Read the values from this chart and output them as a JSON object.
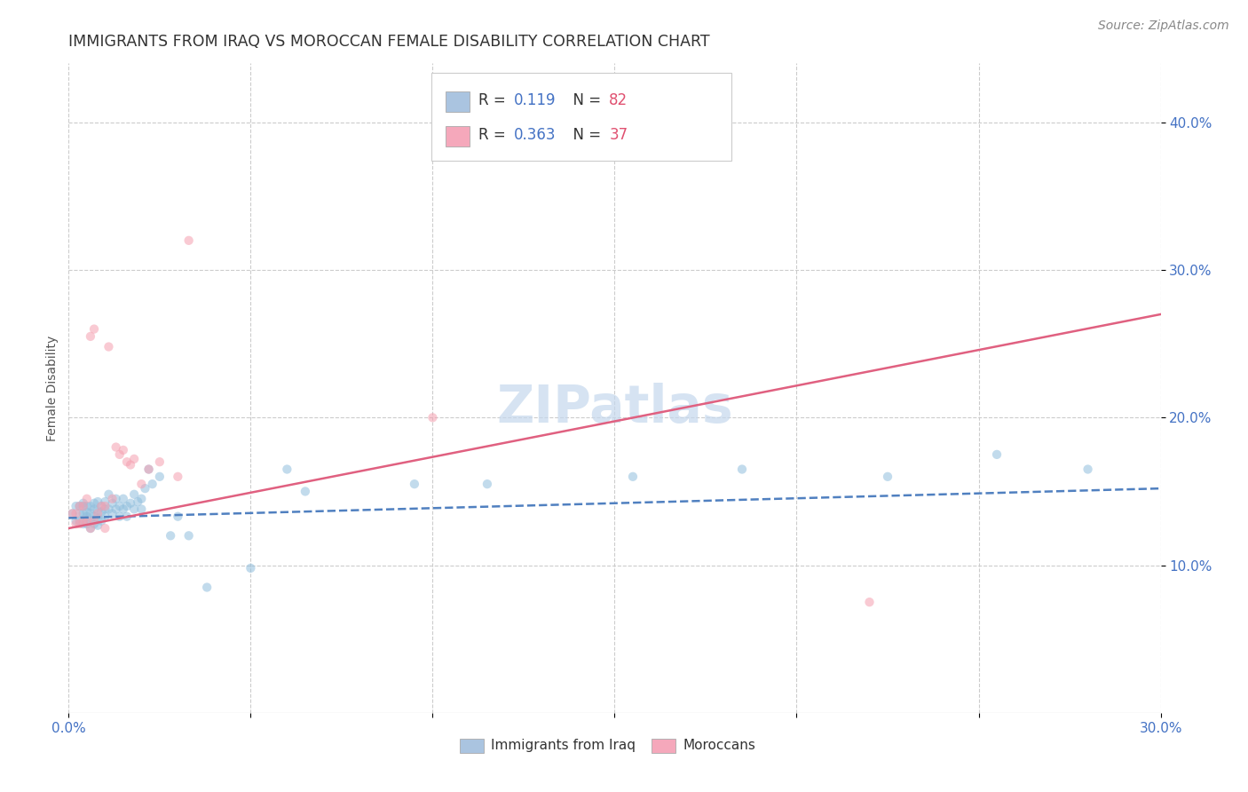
{
  "title": "IMMIGRANTS FROM IRAQ VS MOROCCAN FEMALE DISABILITY CORRELATION CHART",
  "source": "Source: ZipAtlas.com",
  "ylabel": "Female Disability",
  "xlim": [
    0.0,
    0.3
  ],
  "ylim": [
    0.0,
    0.44
  ],
  "xtick_values": [
    0.0,
    0.3
  ],
  "xtick_labels": [
    "0.0%",
    "30.0%"
  ],
  "ytick_values": [
    0.1,
    0.2,
    0.3,
    0.4
  ],
  "ytick_labels": [
    "10.0%",
    "20.0%",
    "30.0%",
    "40.0%"
  ],
  "watermark": "ZIPatlas",
  "legend_color1": "#aac4e0",
  "legend_color2": "#f5a8bb",
  "color_iraq": "#90bedd",
  "color_moroccan": "#f5a0b0",
  "line_color_iraq": "#5080c0",
  "line_color_moroccan": "#e06080",
  "iraq_scatter_x": [
    0.001,
    0.002,
    0.002,
    0.003,
    0.003,
    0.003,
    0.004,
    0.004,
    0.004,
    0.004,
    0.005,
    0.005,
    0.005,
    0.005,
    0.006,
    0.006,
    0.006,
    0.006,
    0.007,
    0.007,
    0.007,
    0.007,
    0.008,
    0.008,
    0.008,
    0.008,
    0.009,
    0.009,
    0.009,
    0.01,
    0.01,
    0.01,
    0.011,
    0.011,
    0.012,
    0.012,
    0.013,
    0.013,
    0.014,
    0.014,
    0.015,
    0.015,
    0.016,
    0.016,
    0.017,
    0.018,
    0.018,
    0.019,
    0.02,
    0.02,
    0.021,
    0.022,
    0.023,
    0.025,
    0.028,
    0.03,
    0.033,
    0.038,
    0.05,
    0.06,
    0.065,
    0.095,
    0.115,
    0.155,
    0.185,
    0.225,
    0.255,
    0.28
  ],
  "iraq_scatter_y": [
    0.135,
    0.14,
    0.13,
    0.14,
    0.135,
    0.13,
    0.14,
    0.135,
    0.128,
    0.142,
    0.14,
    0.133,
    0.136,
    0.128,
    0.14,
    0.135,
    0.13,
    0.125,
    0.142,
    0.138,
    0.133,
    0.128,
    0.143,
    0.137,
    0.132,
    0.127,
    0.14,
    0.136,
    0.13,
    0.143,
    0.138,
    0.133,
    0.148,
    0.138,
    0.142,
    0.135,
    0.145,
    0.138,
    0.14,
    0.133,
    0.145,
    0.138,
    0.14,
    0.133,
    0.142,
    0.148,
    0.138,
    0.143,
    0.145,
    0.138,
    0.152,
    0.165,
    0.155,
    0.16,
    0.12,
    0.133,
    0.12,
    0.085,
    0.098,
    0.165,
    0.15,
    0.155,
    0.155,
    0.16,
    0.165,
    0.16,
    0.175,
    0.165
  ],
  "moroccan_scatter_x": [
    0.001,
    0.002,
    0.002,
    0.003,
    0.003,
    0.004,
    0.004,
    0.005,
    0.005,
    0.006,
    0.006,
    0.007,
    0.007,
    0.008,
    0.009,
    0.01,
    0.01,
    0.011,
    0.012,
    0.013,
    0.014,
    0.015,
    0.016,
    0.017,
    0.018,
    0.02,
    0.022,
    0.025,
    0.03,
    0.033,
    0.1,
    0.22
  ],
  "moroccan_scatter_y": [
    0.135,
    0.135,
    0.128,
    0.14,
    0.128,
    0.14,
    0.13,
    0.145,
    0.13,
    0.255,
    0.125,
    0.26,
    0.13,
    0.135,
    0.14,
    0.14,
    0.125,
    0.248,
    0.145,
    0.18,
    0.175,
    0.178,
    0.17,
    0.168,
    0.172,
    0.155,
    0.165,
    0.17,
    0.16,
    0.32,
    0.2,
    0.075
  ],
  "iraq_line_x": [
    0.0,
    0.3
  ],
  "iraq_line_y": [
    0.132,
    0.152
  ],
  "moroccan_line_x": [
    0.0,
    0.3
  ],
  "moroccan_line_y": [
    0.125,
    0.27
  ],
  "background_color": "#ffffff",
  "grid_color": "#cccccc",
  "title_fontsize": 12.5,
  "axis_label_fontsize": 10,
  "tick_fontsize": 11,
  "source_fontsize": 10,
  "watermark_fontsize": 42,
  "scatter_size": 55,
  "scatter_alpha": 0.55,
  "line_width": 1.8
}
